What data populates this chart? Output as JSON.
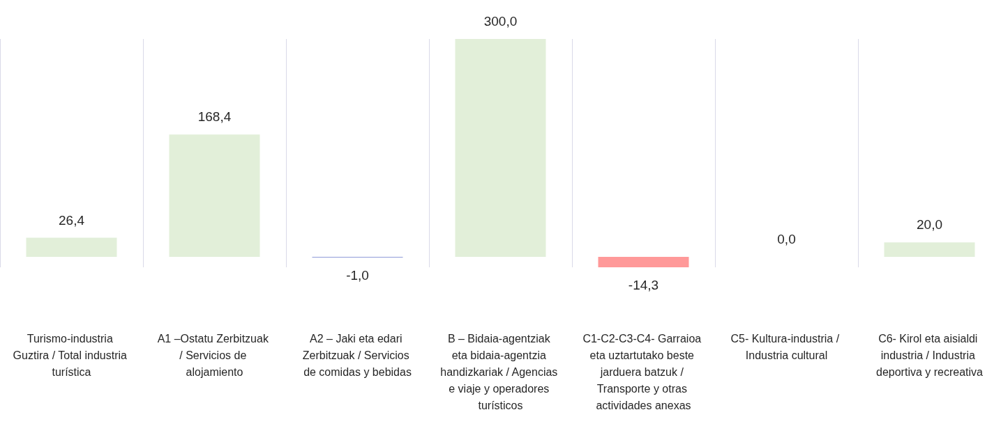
{
  "chart_data": {
    "type": "bar",
    "categories": [
      "Turismo-industria Guztira / Total industria turística",
      "A1 –Ostatu Zerbitzuak / Servicios de alojamiento",
      "A2 – Jaki eta edari Zerbitzuak / Servicios de comidas y bebidas",
      "B – Bidaia-agentziak eta bidaia-agentzia handizkariak / Agencias e viaje y operadores turísticos",
      "C1-C2-C3-C4- Garraioa eta uztartutako beste jarduera batzuk / Transporte y otras actividades anexas",
      "C5- Kultura-industria / Industria cultural",
      "C6- Kirol eta aisialdi industria / Industria deportiva y recreativa"
    ],
    "values": [
      26.4,
      168.4,
      -1.0,
      300.0,
      -14.3,
      0.0,
      20.0
    ],
    "value_labels": [
      "26,4",
      "168,4",
      "-1,0",
      "300,0",
      "-14,3",
      "0,0",
      "20,0"
    ],
    "colors": [
      "#e2efd9",
      "#e2efd9",
      "#8f9bd8",
      "#e2efd9",
      "#ff9999",
      "#e2efd9",
      "#e2efd9"
    ],
    "grid": "x"
  }
}
